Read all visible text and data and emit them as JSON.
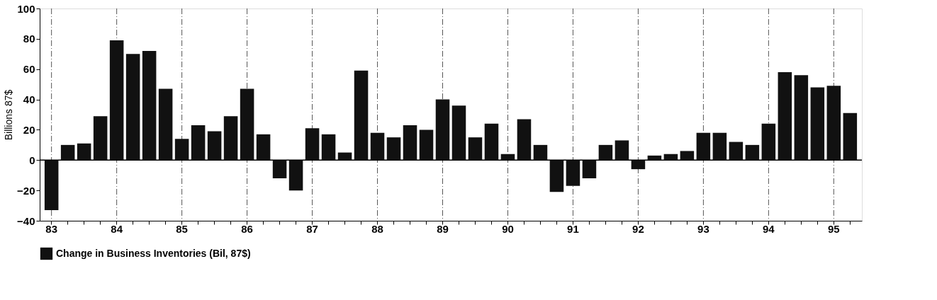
{
  "chart_data": {
    "type": "bar",
    "ylabel": "Billions 87$",
    "categories": [
      "83",
      null,
      null,
      null,
      "84",
      null,
      null,
      null,
      "85",
      null,
      null,
      null,
      "86",
      null,
      null,
      null,
      "87",
      null,
      null,
      null,
      "88",
      null,
      null,
      null,
      "89",
      null,
      null,
      null,
      "90",
      null,
      null,
      null,
      "91",
      null,
      null,
      null,
      "92",
      null,
      null,
      null,
      "93",
      null,
      null,
      null,
      "94",
      null,
      null,
      null,
      "95",
      null
    ],
    "series": [
      {
        "name": "Change in Business Inventories (Bil, 87$)",
        "color": "#111111",
        "values": [
          -33,
          10,
          11,
          29,
          79,
          70,
          72,
          47,
          14,
          23,
          19,
          29,
          47,
          17,
          -12,
          -20,
          21,
          17,
          5,
          59,
          18,
          15,
          23,
          20,
          40,
          36,
          15,
          24,
          4,
          27,
          10,
          -21,
          -17,
          -12,
          10,
          13,
          -6,
          3,
          4,
          6,
          18,
          18,
          12,
          10,
          24,
          58,
          56,
          48,
          49,
          31
        ]
      }
    ],
    "ylim": [
      -40,
      100
    ],
    "yticks": [
      -40,
      -20,
      0,
      20,
      40,
      60,
      80,
      100
    ],
    "grid": "x",
    "legend": "bottom"
  }
}
